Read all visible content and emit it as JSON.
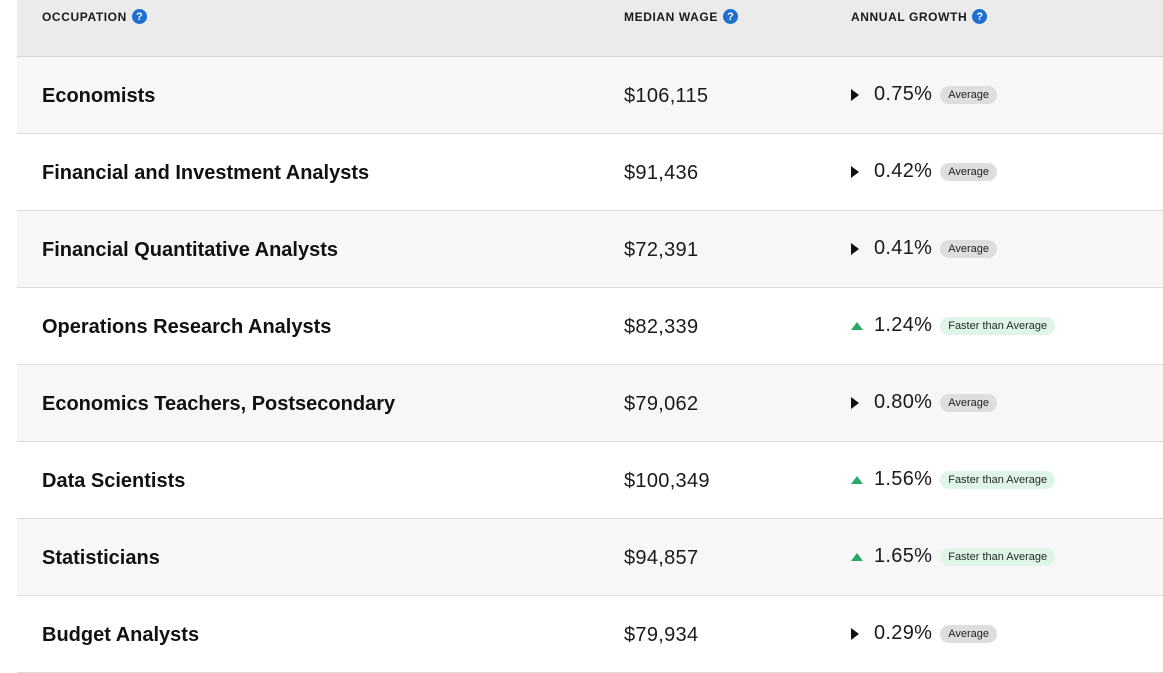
{
  "header": {
    "occupation": "OCCUPATION",
    "median_wage": "MEDIAN WAGE",
    "annual_growth": "ANNUAL GROWTH",
    "help_glyph": "?"
  },
  "rows": [
    {
      "occupation": "Economists",
      "wage": "$106,115",
      "growth": "0.75%",
      "badge": "Average",
      "trend": "neutral"
    },
    {
      "occupation": "Financial and Investment Analysts",
      "wage": "$91,436",
      "growth": "0.42%",
      "badge": "Average",
      "trend": "neutral"
    },
    {
      "occupation": "Financial Quantitative Analysts",
      "wage": "$72,391",
      "growth": "0.41%",
      "badge": "Average",
      "trend": "neutral"
    },
    {
      "occupation": "Operations Research Analysts",
      "wage": "$82,339",
      "growth": "1.24%",
      "badge": "Faster than Average",
      "trend": "up"
    },
    {
      "occupation": "Economics Teachers, Postsecondary",
      "wage": "$79,062",
      "growth": "0.80%",
      "badge": "Average",
      "trend": "neutral"
    },
    {
      "occupation": "Data Scientists",
      "wage": "$100,349",
      "growth": "1.56%",
      "badge": "Faster than Average",
      "trend": "up"
    },
    {
      "occupation": "Statisticians",
      "wage": "$94,857",
      "growth": "1.65%",
      "badge": "Faster than Average",
      "trend": "up"
    },
    {
      "occupation": "Budget Analysts",
      "wage": "$79,934",
      "growth": "0.29%",
      "badge": "Average",
      "trend": "neutral"
    }
  ],
  "colors": {
    "help_icon": "#1e6fd0",
    "up_arrow": "#2aa86a",
    "neutral_arrow": "#111111",
    "average_badge_bg": "#dedede",
    "faster_badge_bg": "#dff5e8",
    "header_bg": "#ebebeb"
  },
  "icons": {
    "help": "question-circle-icon",
    "neutral": "triangle-right-icon",
    "up": "triangle-up-icon"
  }
}
